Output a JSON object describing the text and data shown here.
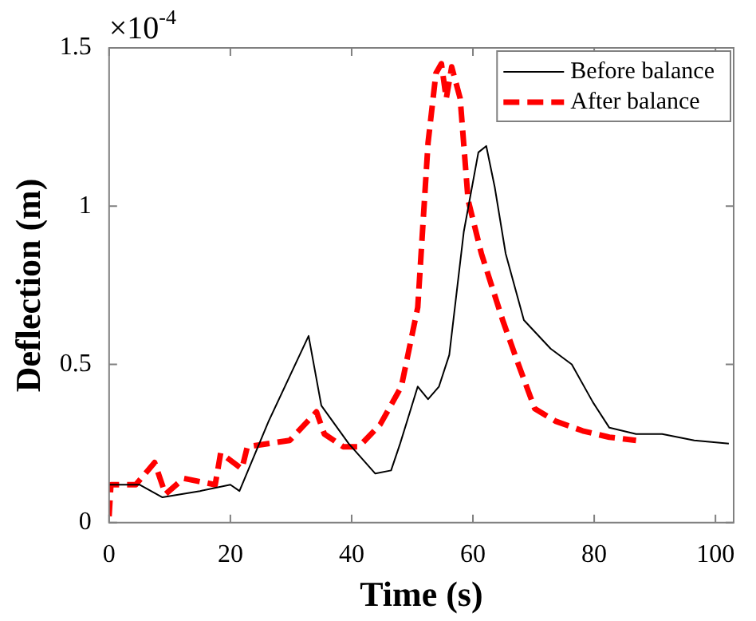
{
  "chart_data": {
    "type": "line",
    "xlabel": "Time (s)",
    "ylabel": "Deflection (m)",
    "annotations": [
      "×10$^{-4}$"
    ],
    "xlim": [
      0,
      103
    ],
    "xticks": [
      0,
      20,
      40,
      60,
      80,
      100
    ],
    "ylim": [
      0,
      1.5
    ],
    "yticks": [
      0,
      0.5,
      1,
      1.5
    ],
    "grid": false,
    "legend": "top right",
    "marker": "none",
    "series": [
      {
        "name": "Before balance",
        "color": "#000000",
        "line_style": "solid",
        "x": [
          0,
          5,
          8.8,
          15,
          20,
          21.5,
          26.3,
          32.9,
          35,
          39.5,
          43.9,
          46.5,
          48,
          50.9,
          52.6,
          54.4,
          56.1,
          58.5,
          60.9,
          62.2,
          63.6,
          65.4,
          68.4,
          72.8,
          76.3,
          79.8,
          82.5,
          86.9,
          91.2,
          96.5,
          102.2
        ],
        "values": [
          0.12,
          0.12,
          0.08,
          0.1,
          0.12,
          0.1,
          0.32,
          0.59,
          0.37,
          0.25,
          0.155,
          0.165,
          0.25,
          0.43,
          0.39,
          0.43,
          0.53,
          0.92,
          1.17,
          1.19,
          1.06,
          0.85,
          0.64,
          0.55,
          0.5,
          0.38,
          0.3,
          0.28,
          0.28,
          0.26,
          0.25
        ]
      },
      {
        "name": "After balance",
        "color": "#ff0000",
        "line_style": "dashed",
        "x": [
          0,
          0.3,
          4.4,
          7.5,
          9.3,
          12.3,
          17.5,
          18.4,
          21.9,
          22.8,
          29.8,
          34.2,
          35.5,
          38.6,
          41.2,
          44.7,
          48.2,
          50.9,
          52.6,
          53.9,
          54.8,
          55.6,
          56.5,
          57.9,
          59.2,
          61.4,
          64.9,
          67.5,
          70.2,
          73.7,
          78.1,
          82.5,
          86.9
        ],
        "values": [
          0.02,
          0.12,
          0.12,
          0.19,
          0.09,
          0.14,
          0.12,
          0.22,
          0.17,
          0.24,
          0.26,
          0.35,
          0.28,
          0.24,
          0.24,
          0.31,
          0.43,
          0.68,
          1.2,
          1.42,
          1.45,
          1.34,
          1.44,
          1.34,
          1.02,
          0.85,
          0.64,
          0.5,
          0.36,
          0.32,
          0.29,
          0.27,
          0.26
        ]
      }
    ]
  }
}
